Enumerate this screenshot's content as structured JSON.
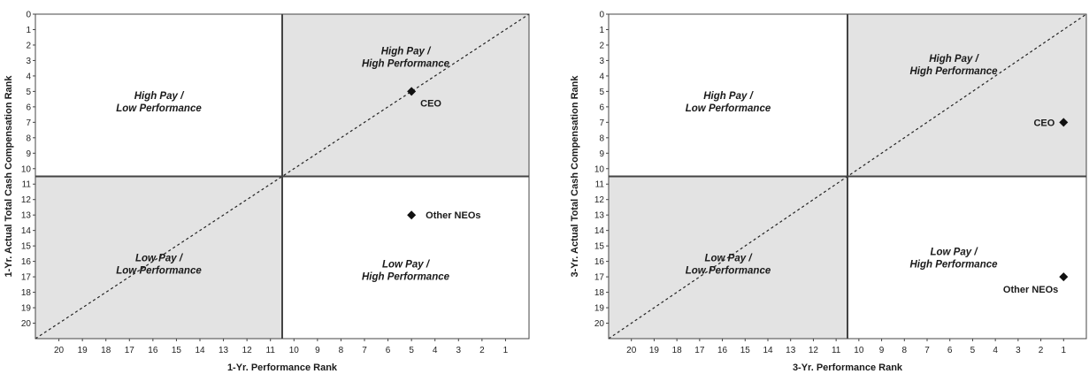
{
  "chart_data": [
    {
      "type": "scatter",
      "xlabel": "1-Yr. Performance Rank",
      "ylabel": "1-Yr. Actual Total Cash Compensation Rank",
      "xlim": [
        21,
        0
      ],
      "ylim": [
        21,
        0
      ],
      "x_ticks": [
        "20",
        "19",
        "18",
        "17",
        "16",
        "15",
        "14",
        "13",
        "12",
        "11",
        "10",
        "9",
        "8",
        "7",
        "6",
        "5",
        "4",
        "3",
        "2",
        "1"
      ],
      "y_ticks": [
        "0",
        "1",
        "2",
        "3",
        "4",
        "5",
        "6",
        "7",
        "8",
        "9",
        "10",
        "11",
        "12",
        "13",
        "14",
        "15",
        "16",
        "17",
        "18",
        "19",
        "20"
      ],
      "quadrants": [
        {
          "lines": [
            "High Pay /",
            "Low Performance"
          ],
          "shaded": false
        },
        {
          "lines": [
            "High Pay /",
            "High Performance"
          ],
          "shaded": true
        },
        {
          "lines": [
            "Low Pay /",
            "Low Performance"
          ],
          "shaded": true
        },
        {
          "lines": [
            "Low Pay /",
            "High Performance"
          ],
          "shaded": false
        }
      ],
      "points": [
        {
          "label": "CEO",
          "x": 5,
          "y": 5
        },
        {
          "label": "Other NEOs",
          "x": 5,
          "y": 13
        }
      ],
      "diagonal": true,
      "grid": false
    },
    {
      "type": "scatter",
      "xlabel": "3-Yr. Performance Rank",
      "ylabel": "3-Yr. Actual Total Cash Compensation Rank",
      "xlim": [
        21,
        0
      ],
      "ylim": [
        21,
        0
      ],
      "x_ticks": [
        "20",
        "19",
        "18",
        "17",
        "16",
        "15",
        "14",
        "13",
        "12",
        "11",
        "10",
        "9",
        "8",
        "7",
        "6",
        "5",
        "4",
        "3",
        "2",
        "1"
      ],
      "y_ticks": [
        "0",
        "1",
        "2",
        "3",
        "4",
        "5",
        "6",
        "7",
        "8",
        "9",
        "10",
        "11",
        "12",
        "13",
        "14",
        "15",
        "16",
        "17",
        "18",
        "19",
        "20"
      ],
      "quadrants": [
        {
          "lines": [
            "High Pay /",
            "Low Performance"
          ],
          "shaded": false
        },
        {
          "lines": [
            "High Pay /",
            "High Performance"
          ],
          "shaded": true
        },
        {
          "lines": [
            "Low Pay /",
            "Low Performance"
          ],
          "shaded": true
        },
        {
          "lines": [
            "Low Pay /",
            "High Performance"
          ],
          "shaded": false
        }
      ],
      "points": [
        {
          "label": "CEO",
          "x": 1,
          "y": 7
        },
        {
          "label": "Other NEOs",
          "x": 1,
          "y": 17
        }
      ],
      "diagonal": true,
      "grid": false
    }
  ],
  "colors": {
    "shade": "#e3e3e3",
    "frame": "#444444",
    "marker": "#111111",
    "text": "#1a1a1a"
  }
}
